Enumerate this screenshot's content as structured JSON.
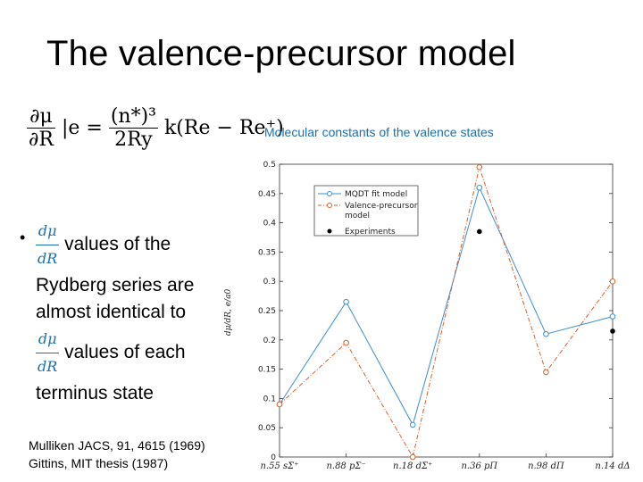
{
  "slide": {
    "title": "The valence-precursor model",
    "bullet_line1": "values of the",
    "bullet_line2": "Rydberg series are",
    "bullet_line3": "almost identical to",
    "bullet_line4": "values of each",
    "bullet_line5": "terminus state",
    "frac_num": "dμ",
    "frac_den": "dR",
    "ref1": "Mulliken JACS, 91, 4615 (1969)",
    "ref2": "Gittins, MIT thesis (1987)",
    "eq_lhs_num": "∂μ",
    "eq_lhs_den": "∂R",
    "eq_mid": "|e =",
    "eq_rhs_num": "(n*)³",
    "eq_rhs_den": "2Ry",
    "eq_tail": "k(Re − Re⁺)"
  },
  "chart_data": {
    "type": "line",
    "title": "Molecular constants of the valence states",
    "ylabel": "dμ/dR, e/a0",
    "xlabel": "",
    "categories": [
      "n.55 sΣ⁺",
      "n.88 pΣ⁻",
      "n.18 dΣ⁺",
      "n.36 pΠ",
      "n.98 dΠ",
      "n.14 dΔ"
    ],
    "ylim": [
      0,
      0.5
    ],
    "yticks": [
      "0",
      "0.05",
      "0.1",
      "0.15",
      "0.2",
      "0.25",
      "0.3",
      "0.35",
      "0.4",
      "0.45",
      "0.5"
    ],
    "legend_position": "top-left",
    "series": [
      {
        "name": "MQDT fit model",
        "color": "#3a8fd0",
        "marker": "circle-open",
        "values": [
          0.09,
          0.265,
          0.055,
          0.46,
          0.21,
          0.24
        ]
      },
      {
        "name": "Valence-precursor model",
        "color": "#d8622a",
        "marker": "circle-open-dashdot",
        "values": [
          0.09,
          0.195,
          0.0,
          0.495,
          0.145,
          0.3
        ]
      },
      {
        "name": "Experiments",
        "color": "#000000",
        "marker": "dot",
        "values": [
          null,
          null,
          null,
          0.385,
          null,
          0.215
        ]
      }
    ]
  }
}
